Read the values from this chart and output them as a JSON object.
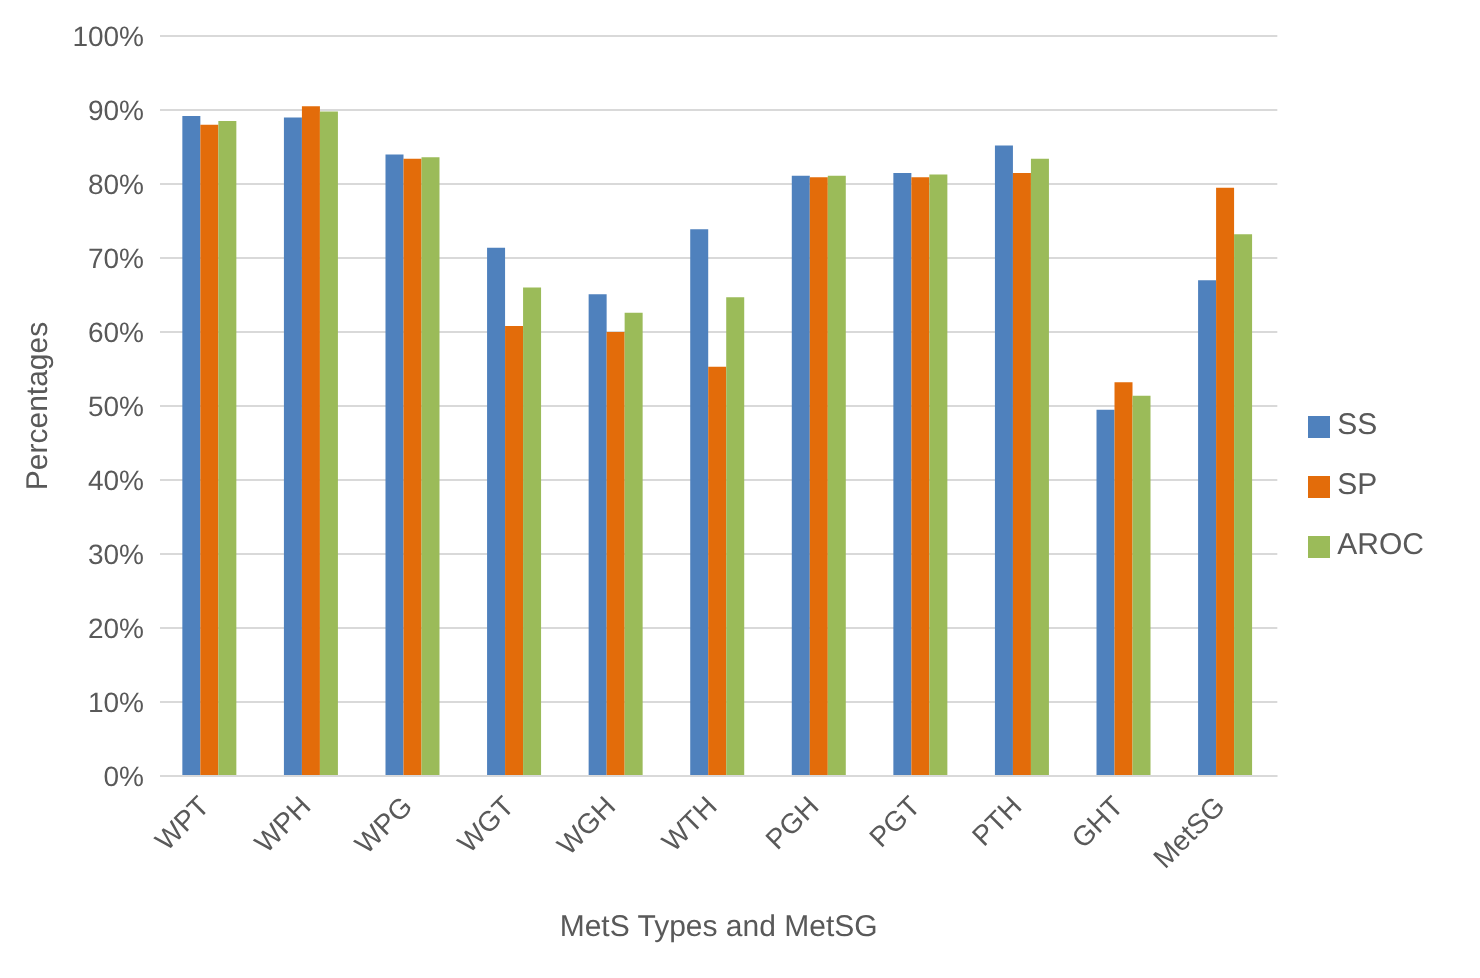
{
  "chart_data": {
    "type": "bar",
    "xlabel": "MetS Types and MetSG",
    "ylabel": "Percentages",
    "categories": [
      "WPT",
      "WPH",
      "WPG",
      "WGT",
      "WGH",
      "WTH",
      "PGH",
      "PGT",
      "PTH",
      "GHT",
      "MetSG"
    ],
    "series": [
      {
        "name": "SS",
        "color": "#4f81bd",
        "values": [
          89.2,
          89,
          84,
          71.4,
          65.1,
          73.9,
          81.1,
          81.5,
          85.2,
          49.5,
          67
        ]
      },
      {
        "name": "SP",
        "color": "#e36c0a",
        "values": [
          88,
          90.5,
          83.4,
          60.8,
          60,
          55.3,
          80.9,
          80.9,
          81.5,
          53.2,
          79.5
        ]
      },
      {
        "name": "AROC",
        "color": "#9bbb59",
        "values": [
          88.5,
          89.8,
          83.6,
          66,
          62.6,
          64.7,
          81.1,
          81.3,
          83.4,
          51.4,
          73.2
        ]
      }
    ],
    "ylim": [
      0,
      100
    ],
    "yticks": [
      {
        "value": 0,
        "label": "0%"
      },
      {
        "value": 10,
        "label": "10%"
      },
      {
        "value": 20,
        "label": "20%"
      },
      {
        "value": 30,
        "label": "30%"
      },
      {
        "value": 40,
        "label": "40%"
      },
      {
        "value": 50,
        "label": "50%"
      },
      {
        "value": 60,
        "label": "60%"
      },
      {
        "value": 70,
        "label": "70%"
      },
      {
        "value": 80,
        "label": "80%"
      },
      {
        "value": 90,
        "label": "90%"
      },
      {
        "value": 100,
        "label": "100%"
      }
    ],
    "grid": "y",
    "legend": "right"
  }
}
